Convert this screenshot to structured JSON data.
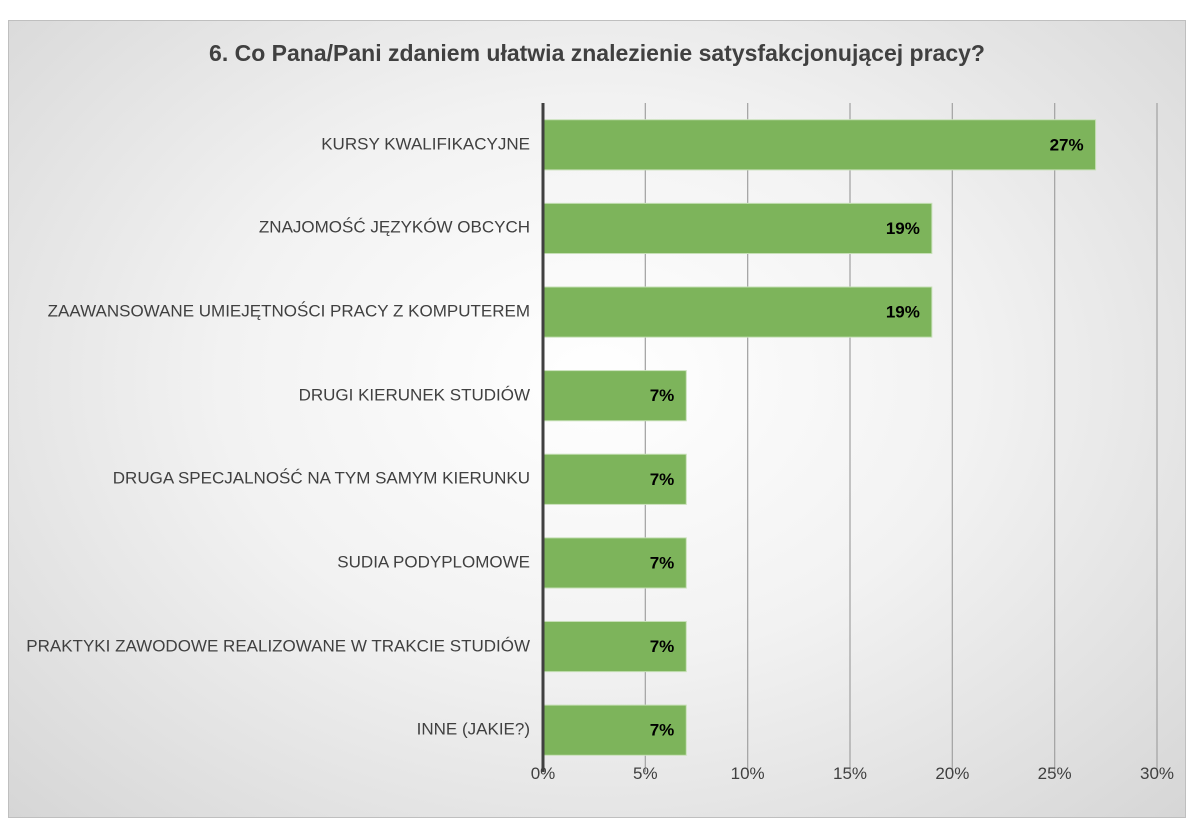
{
  "chart_data": {
    "type": "bar",
    "orientation": "horizontal",
    "title": "6. Co Pana/Pani zdaniem ułatwia znalezienie satysfakcjonującej pracy?",
    "categories": [
      "KURSY KWALIFIKACYJNE",
      "ZNAJOMOŚĆ JĘZYKÓW OBCYCH",
      "ZAAWANSOWANE UMIEJĘTNOŚCI PRACY Z KOMPUTEREM",
      "DRUGI KIERUNEK STUDIÓW",
      "DRUGA SPECJALNOŚĆ NA TYM SAMYM KIERUNKU",
      "SUDIA PODYPLOMOWE",
      "PRAKTYKI ZAWODOWE REALIZOWANE W TRAKCIE STUDIÓW",
      "INNE (JAKIE?)"
    ],
    "values": [
      27,
      19,
      19,
      7,
      7,
      7,
      7,
      7
    ],
    "value_labels": [
      "27%",
      "19%",
      "19%",
      "7%",
      "7%",
      "7%",
      "7%",
      "7%"
    ],
    "color": "#7db45b",
    "xlim": [
      0,
      30
    ],
    "xticks": [
      {
        "value": 0,
        "label": "0%"
      },
      {
        "value": 5,
        "label": "5%"
      },
      {
        "value": 10,
        "label": "10%"
      },
      {
        "value": 15,
        "label": "15%"
      },
      {
        "value": 20,
        "label": "20%"
      },
      {
        "value": 25,
        "label": "25%"
      },
      {
        "value": 30,
        "label": "30%"
      }
    ],
    "grid": true
  }
}
